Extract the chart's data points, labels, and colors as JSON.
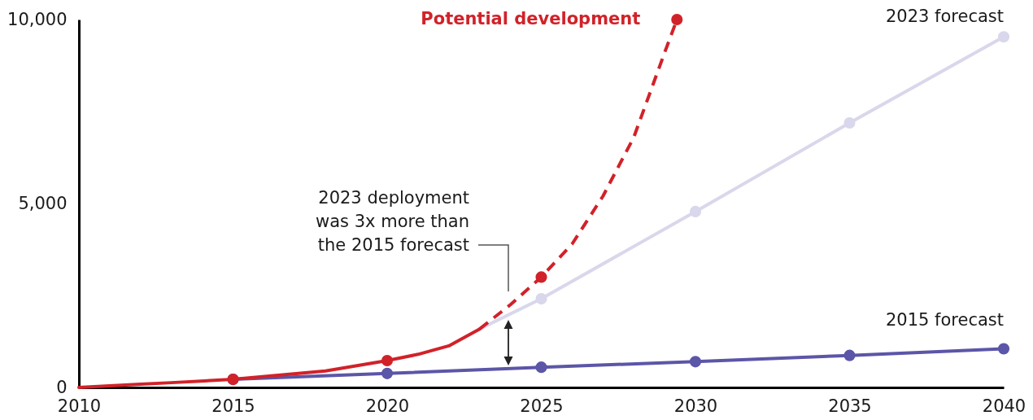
{
  "chart_data": {
    "type": "line",
    "xlim": [
      2010,
      2040
    ],
    "xticks": [
      2010,
      2015,
      2020,
      2025,
      2030,
      2035,
      2040
    ],
    "ylim": [
      0,
      10000
    ],
    "yticks": [
      0,
      {
        "value": 5000,
        "label": "5,000"
      },
      {
        "value": 10000,
        "label": "10,000"
      }
    ],
    "annotations": [
      "2023 deployment was 3x more than the 2015 forecast"
    ],
    "series": [
      {
        "name": "2015 forecast",
        "color": "#5c56a8",
        "marker": "circle",
        "x": [
          2015,
          2020,
          2025,
          2030,
          2035,
          2040
        ],
        "values": [
          220,
          380,
          550,
          700,
          870,
          1050
        ]
      },
      {
        "name": "2023 forecast",
        "color": "#d9d7eb",
        "x": [
          2023,
          2025,
          2030,
          2035,
          2040
        ],
        "values": [
          1590,
          2410,
          4780,
          7190,
          9530
        ]
      },
      {
        "type": "scatter",
        "color": "#d9d7eb",
        "marker": "circle",
        "x": [
          2025,
          2030,
          2035,
          2040
        ],
        "values": [
          2410,
          4780,
          7190,
          9530
        ]
      },
      {
        "color": "#d12229",
        "x": [
          2010,
          2012,
          2013,
          2015,
          2018,
          2020,
          2021,
          2022,
          2023
        ],
        "values": [
          0,
          90,
          130,
          220,
          450,
          730,
          900,
          1130,
          1590
        ]
      },
      {
        "name": "Potential development",
        "color": "#d12229",
        "line_style": "dashed",
        "x": [
          2023,
          2024,
          2025,
          2026,
          2027,
          2028,
          2029,
          2029.4
        ],
        "values": [
          1590,
          2250,
          3000,
          3900,
          5200,
          6800,
          9100,
          10000
        ]
      },
      {
        "type": "scatter",
        "color": "#d12229",
        "marker": "circle",
        "x": [
          2015,
          2020,
          2025,
          2029.4
        ],
        "values": [
          220,
          730,
          3000,
          10000
        ]
      }
    ]
  }
}
